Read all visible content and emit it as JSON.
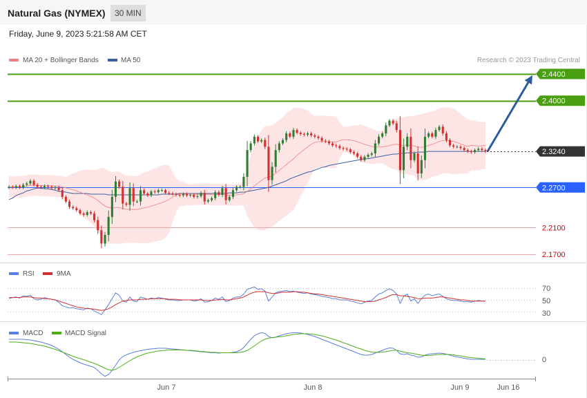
{
  "header": {
    "instrument": "Natural Gas (NYMEX)",
    "timeframe": "30 MIN",
    "datetime": "Friday, June 9, 2023 5:21:58 AM CET",
    "copyright": "Research © 2023 Trading Central"
  },
  "colors": {
    "candle_up": "#2f7d32",
    "candle_down": "#d32f2f",
    "band_fill": "#fde0e0",
    "ma20": "#f08080",
    "ma50": "#3a5fa0",
    "resistance": "#4a9e12",
    "pivot": "#2962ff",
    "support": "#f2a4a4",
    "support_text": "#cc0000",
    "current": "#333333",
    "arrow": "#2e5a9e",
    "rsi": "#5b7fde",
    "rsi_ma": "#d32f2f",
    "macd": "#5b7fde",
    "macd_signal": "#4caf1a"
  },
  "chart_data": [
    {
      "type": "candlestick",
      "title": "Natural Gas (NYMEX)",
      "legend": [
        {
          "name": "MA 20 + Bollinger Bands",
          "color": "#f08080"
        },
        {
          "name": "MA 50",
          "color": "#3a5fa0"
        }
      ],
      "x_tick_labels": [
        "Jun 7",
        "Jun 8",
        "Jun 9",
        "Jun 16"
      ],
      "ylim": [
        2.16,
        2.45
      ],
      "current_price": 2.324,
      "levels": [
        {
          "label": "2.4400",
          "value": 2.44,
          "kind": "resistance"
        },
        {
          "label": "2.4000",
          "value": 2.4,
          "kind": "resistance"
        },
        {
          "label": "2.3240",
          "value": 2.324,
          "kind": "current"
        },
        {
          "label": "2.2700",
          "value": 2.27,
          "kind": "pivot"
        },
        {
          "label": "2.2100",
          "value": 2.21,
          "kind": "support"
        },
        {
          "label": "2.1700",
          "value": 2.17,
          "kind": "support"
        }
      ],
      "closes": [
        2.271,
        2.27,
        2.272,
        2.27,
        2.274,
        2.276,
        2.28,
        2.274,
        2.271,
        2.27,
        2.272,
        2.271,
        2.269,
        2.27,
        2.266,
        2.256,
        2.249,
        2.241,
        2.239,
        2.236,
        2.231,
        2.229,
        2.233,
        2.231,
        2.221,
        2.206,
        2.186,
        2.199,
        2.226,
        2.256,
        2.279,
        2.271,
        2.246,
        2.244,
        2.269,
        2.249,
        2.249,
        2.266,
        2.261,
        2.258,
        2.264,
        2.263,
        2.266,
        2.266,
        2.262,
        2.261,
        2.26,
        2.259,
        2.258,
        2.26,
        2.258,
        2.259,
        2.256,
        2.257,
        2.262,
        2.249,
        2.251,
        2.254,
        2.263,
        2.259,
        2.269,
        2.251,
        2.256,
        2.266,
        2.271,
        2.271,
        2.286,
        2.326,
        2.336,
        2.346,
        2.339,
        2.341,
        2.331,
        2.281,
        2.301,
        2.326,
        2.336,
        2.341,
        2.351,
        2.346,
        2.356,
        2.352,
        2.35,
        2.349,
        2.351,
        2.348,
        2.346,
        2.344,
        2.34,
        2.339,
        2.336,
        2.333,
        2.332,
        2.329,
        2.328,
        2.327,
        2.323,
        2.321,
        2.316,
        2.311,
        2.316,
        2.319,
        2.321,
        2.336,
        2.346,
        2.351,
        2.363,
        2.37,
        2.366,
        2.356,
        2.296,
        2.331,
        2.346,
        2.311,
        2.321,
        2.291,
        2.311,
        2.346,
        2.351,
        2.346,
        2.356,
        2.361,
        2.351,
        2.341,
        2.333,
        2.331,
        2.331,
        2.329,
        2.326,
        2.324,
        2.323,
        2.326,
        2.328,
        2.326,
        2.324
      ],
      "ma50": [
        2.252,
        2.254,
        2.258,
        2.26,
        2.262,
        2.265,
        2.266,
        2.268,
        2.269,
        2.269,
        2.268,
        2.268,
        2.267,
        2.266,
        2.264,
        2.264,
        2.263,
        2.262,
        2.261,
        2.261,
        2.261,
        2.261,
        2.261,
        2.26,
        2.26,
        2.26,
        2.26,
        2.26,
        2.259,
        2.259,
        2.259,
        2.259,
        2.259,
        2.259,
        2.259,
        2.259,
        2.259,
        2.259,
        2.259,
        2.259,
        2.259,
        2.259,
        2.259,
        2.26,
        2.26,
        2.26,
        2.26,
        2.26,
        2.261,
        2.261,
        2.261,
        2.261,
        2.261,
        2.261,
        2.261,
        2.261,
        2.261,
        2.261,
        2.261,
        2.261,
        2.261,
        2.261,
        2.262,
        2.262,
        2.262,
        2.263,
        2.263,
        2.264,
        2.265,
        2.266,
        2.267,
        2.268,
        2.269,
        2.27,
        2.272,
        2.274,
        2.276,
        2.278,
        2.28,
        2.283,
        2.285,
        2.287,
        2.289,
        2.291,
        2.293,
        2.294,
        2.296,
        2.298,
        2.3,
        2.301,
        2.303,
        2.304,
        2.305,
        2.306,
        2.307,
        2.308,
        2.309,
        2.31,
        2.311,
        2.312,
        2.313,
        2.313,
        2.314,
        2.315,
        2.316,
        2.317,
        2.318,
        2.319,
        2.32,
        2.32,
        2.321,
        2.321,
        2.322,
        2.322,
        2.322,
        2.323,
        2.323,
        2.323,
        2.324,
        2.324,
        2.324,
        2.324,
        2.324,
        2.324,
        2.324,
        2.324,
        2.324,
        2.324,
        2.324,
        2.324,
        2.324,
        2.324,
        2.324,
        2.324,
        2.324
      ],
      "forecast_target": 2.44
    },
    {
      "type": "line",
      "legend": [
        {
          "name": "RSI",
          "color": "#5b7fde"
        },
        {
          "name": "9MA",
          "color": "#d32f2f"
        }
      ],
      "ylim": [
        20,
        80
      ],
      "y_ticks": [
        "70",
        "50",
        "30"
      ],
      "rsi": [
        52,
        54,
        55,
        53,
        57,
        56,
        58,
        52,
        50,
        51,
        54,
        52,
        51,
        50,
        46,
        40,
        38,
        36,
        37,
        35,
        34,
        33,
        36,
        35,
        31,
        28,
        25,
        33,
        42,
        52,
        62,
        58,
        48,
        46,
        55,
        48,
        47,
        55,
        53,
        51,
        53,
        52,
        54,
        53,
        51,
        50,
        50,
        49,
        49,
        50,
        50,
        50,
        48,
        49,
        52,
        46,
        47,
        49,
        53,
        51,
        55,
        47,
        49,
        53,
        55,
        55,
        60,
        68,
        70,
        72,
        68,
        69,
        65,
        48,
        55,
        62,
        64,
        65,
        66,
        64,
        65,
        63,
        62,
        61,
        62,
        60,
        59,
        58,
        56,
        55,
        54,
        52,
        52,
        50,
        50,
        50,
        48,
        47,
        45,
        43,
        46,
        48,
        49,
        55,
        60,
        62,
        66,
        69,
        66,
        60,
        44,
        56,
        60,
        48,
        52,
        44,
        52,
        58,
        60,
        57,
        59,
        60,
        56,
        52,
        50,
        49,
        49,
        48,
        47,
        47,
        46,
        48,
        49,
        48,
        48
      ],
      "rsi_ma": [
        54,
        54,
        54,
        54,
        55,
        55,
        55,
        54,
        53,
        53,
        52,
        52,
        51,
        50,
        48,
        46,
        44,
        42,
        40,
        38,
        37,
        36,
        35,
        35,
        34,
        33,
        32,
        33,
        35,
        38,
        42,
        45,
        48,
        49,
        50,
        50,
        50,
        51,
        51,
        51,
        52,
        52,
        52,
        52,
        52,
        51,
        51,
        51,
        50,
        50,
        50,
        50,
        50,
        50,
        50,
        49,
        49,
        49,
        50,
        50,
        51,
        50,
        50,
        51,
        52,
        53,
        55,
        58,
        61,
        63,
        64,
        64,
        64,
        62,
        61,
        61,
        62,
        63,
        63,
        63,
        64,
        64,
        63,
        63,
        62,
        61,
        60,
        60,
        59,
        58,
        57,
        56,
        55,
        54,
        53,
        52,
        51,
        50,
        49,
        48,
        47,
        47,
        47,
        48,
        50,
        52,
        54,
        57,
        59,
        59,
        57,
        57,
        56,
        55,
        54,
        52,
        52,
        53,
        53,
        53,
        54,
        55,
        55,
        54,
        53,
        52,
        51,
        50,
        50,
        49,
        48,
        48,
        48,
        48,
        48
      ]
    },
    {
      "type": "line",
      "legend": [
        {
          "name": "MACD",
          "color": "#5b7fde"
        },
        {
          "name": "MACD Signal",
          "color": "#4caf1a"
        }
      ],
      "ylim": [
        -0.012,
        0.012
      ],
      "y_ticks": [
        "0"
      ],
      "macd": [
        0.006,
        0.006,
        0.006,
        0.006,
        0.006,
        0.0059,
        0.0058,
        0.0056,
        0.0054,
        0.0052,
        0.0049,
        0.0046,
        0.0042,
        0.0037,
        0.0031,
        0.0024,
        0.0016,
        0.0008,
        0.0002,
        -0.0003,
        -0.0008,
        -0.0012,
        -0.0015,
        -0.0018,
        -0.0022,
        -0.003,
        -0.004,
        -0.0047,
        -0.0042,
        -0.003,
        -0.0015,
        0.0,
        0.001,
        0.0015,
        0.0019,
        0.0022,
        0.0025,
        0.0027,
        0.0029,
        0.0031,
        0.0032,
        0.0033,
        0.0034,
        0.0034,
        0.0034,
        0.0033,
        0.0032,
        0.0031,
        0.003,
        0.0029,
        0.0028,
        0.0027,
        0.0026,
        0.0025,
        0.0024,
        0.0023,
        0.0022,
        0.0021,
        0.0021,
        0.002,
        0.0021,
        0.0021,
        0.0021,
        0.0022,
        0.0024,
        0.0028,
        0.0036,
        0.0048,
        0.006,
        0.007,
        0.0076,
        0.0079,
        0.0077,
        0.0068,
        0.0064,
        0.0066,
        0.007,
        0.0073,
        0.0076,
        0.0078,
        0.0079,
        0.0079,
        0.0078,
        0.0076,
        0.0074,
        0.0071,
        0.0068,
        0.0064,
        0.006,
        0.0056,
        0.0052,
        0.0048,
        0.0044,
        0.004,
        0.0036,
        0.0032,
        0.0028,
        0.0024,
        0.002,
        0.0016,
        0.0014,
        0.0014,
        0.0016,
        0.002,
        0.0024,
        0.0028,
        0.0032,
        0.0035,
        0.0034,
        0.0028,
        0.0018,
        0.0016,
        0.0018,
        0.0014,
        0.0012,
        0.0008,
        0.0009,
        0.0014,
        0.0017,
        0.0018,
        0.0019,
        0.002,
        0.0019,
        0.0017,
        0.0014,
        0.0011,
        0.0009,
        0.0007,
        0.0005,
        0.0003,
        0.0002,
        0.0002,
        0.0002,
        0.0002,
        0.0002
      ],
      "macd_signal": [
        0.0052,
        0.0052,
        0.0052,
        0.0051,
        0.005,
        0.0049,
        0.0048,
        0.0046,
        0.0044,
        0.0042,
        0.004,
        0.0037,
        0.0034,
        0.0031,
        0.0027,
        0.0023,
        0.0019,
        0.0015,
        0.0011,
        0.0007,
        0.0004,
        0.0001,
        -0.0003,
        -0.0006,
        -0.001,
        -0.0014,
        -0.0019,
        -0.0024,
        -0.0028,
        -0.003,
        -0.0027,
        -0.0021,
        -0.0015,
        -0.0008,
        -0.0002,
        0.0004,
        0.0009,
        0.0013,
        0.0017,
        0.002,
        0.0022,
        0.0024,
        0.0026,
        0.0027,
        0.0028,
        0.0029,
        0.0029,
        0.0029,
        0.0029,
        0.0029,
        0.0028,
        0.0028,
        0.0027,
        0.0026,
        0.0025,
        0.0024,
        0.0023,
        0.0022,
        0.0022,
        0.0021,
        0.0021,
        0.0021,
        0.0021,
        0.0021,
        0.0021,
        0.0022,
        0.0024,
        0.0028,
        0.0034,
        0.0041,
        0.0048,
        0.0055,
        0.006,
        0.0063,
        0.0065,
        0.0066,
        0.0067,
        0.0068,
        0.007,
        0.0072,
        0.0074,
        0.0075,
        0.0076,
        0.0076,
        0.0076,
        0.0075,
        0.0074,
        0.0072,
        0.007,
        0.0067,
        0.0064,
        0.0061,
        0.0058,
        0.0054,
        0.005,
        0.0047,
        0.0043,
        0.0039,
        0.0035,
        0.0032,
        0.0028,
        0.0025,
        0.0023,
        0.0022,
        0.0022,
        0.0023,
        0.0024,
        0.0026,
        0.0028,
        0.0028,
        0.0026,
        0.0023,
        0.0021,
        0.002,
        0.0018,
        0.0016,
        0.0014,
        0.0013,
        0.0013,
        0.0014,
        0.0015,
        0.0016,
        0.0016,
        0.0016,
        0.0016,
        0.0015,
        0.0013,
        0.0012,
        0.001,
        0.0008,
        0.0007,
        0.0006,
        0.0005,
        0.0004,
        0.0003
      ]
    }
  ]
}
